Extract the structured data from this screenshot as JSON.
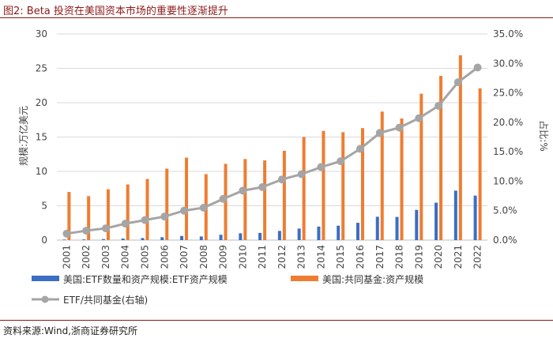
{
  "header": {
    "title": "图2:   Beta 投资在美国资本市场的重要性逐渐提升"
  },
  "footer": {
    "source": "资料来源:Wind,浙商证券研究所"
  },
  "colors": {
    "etf": "#3a6fc4",
    "fund": "#ee7d31",
    "ratio": "#a5a5a5",
    "title": "#8b1a1a",
    "grid": "#d9d9d9"
  },
  "chart_data": {
    "type": "bar",
    "categories": [
      "2001",
      "2002",
      "2003",
      "2004",
      "2005",
      "2006",
      "2007",
      "2008",
      "2009",
      "2010",
      "2011",
      "2012",
      "2013",
      "2014",
      "2015",
      "2016",
      "2017",
      "2018",
      "2019",
      "2020",
      "2021",
      "2022"
    ],
    "series": [
      {
        "name": "美国:ETF数量和资产规模:ETF资产规模",
        "type": "bar",
        "axis": "left",
        "values": [
          0.08,
          0.1,
          0.15,
          0.23,
          0.3,
          0.42,
          0.6,
          0.53,
          0.78,
          0.99,
          1.05,
          1.34,
          1.68,
          1.97,
          2.1,
          2.52,
          3.4,
          3.37,
          4.4,
          5.45,
          7.2,
          6.48
        ]
      },
      {
        "name": "美国:共同基金:资产规模",
        "type": "bar",
        "axis": "left",
        "values": [
          7.0,
          6.4,
          7.4,
          8.1,
          8.9,
          10.4,
          12.0,
          9.6,
          11.1,
          11.8,
          11.6,
          13.0,
          15.0,
          15.9,
          15.7,
          16.3,
          18.7,
          17.7,
          21.3,
          23.9,
          26.9,
          22.1
        ]
      },
      {
        "name": "ETF/共同基金(右轴)",
        "type": "line",
        "axis": "right",
        "values": [
          1.1,
          1.6,
          2.0,
          2.8,
          3.4,
          4.0,
          5.0,
          5.5,
          7.0,
          8.4,
          9.0,
          10.3,
          11.2,
          12.4,
          13.4,
          15.5,
          18.2,
          19.1,
          20.7,
          22.8,
          26.8,
          29.3
        ]
      }
    ],
    "y_left": {
      "label": "规模:万亿美元",
      "min": 0,
      "max": 30,
      "ticks": [
        "0",
        "5",
        "10",
        "15",
        "20",
        "25",
        "30"
      ]
    },
    "y_right": {
      "label": "占比:%",
      "min": 0,
      "max": 35,
      "ticks": [
        "0.0%",
        "5.0%",
        "10.0%",
        "15.0%",
        "20.0%",
        "25.0%",
        "30.0%",
        "35.0%"
      ]
    },
    "legend": [
      "美国:ETF数量和资产规模:ETF资产规模",
      "美国:共同基金:资产规模",
      "ETF/共同基金(右轴)"
    ]
  }
}
